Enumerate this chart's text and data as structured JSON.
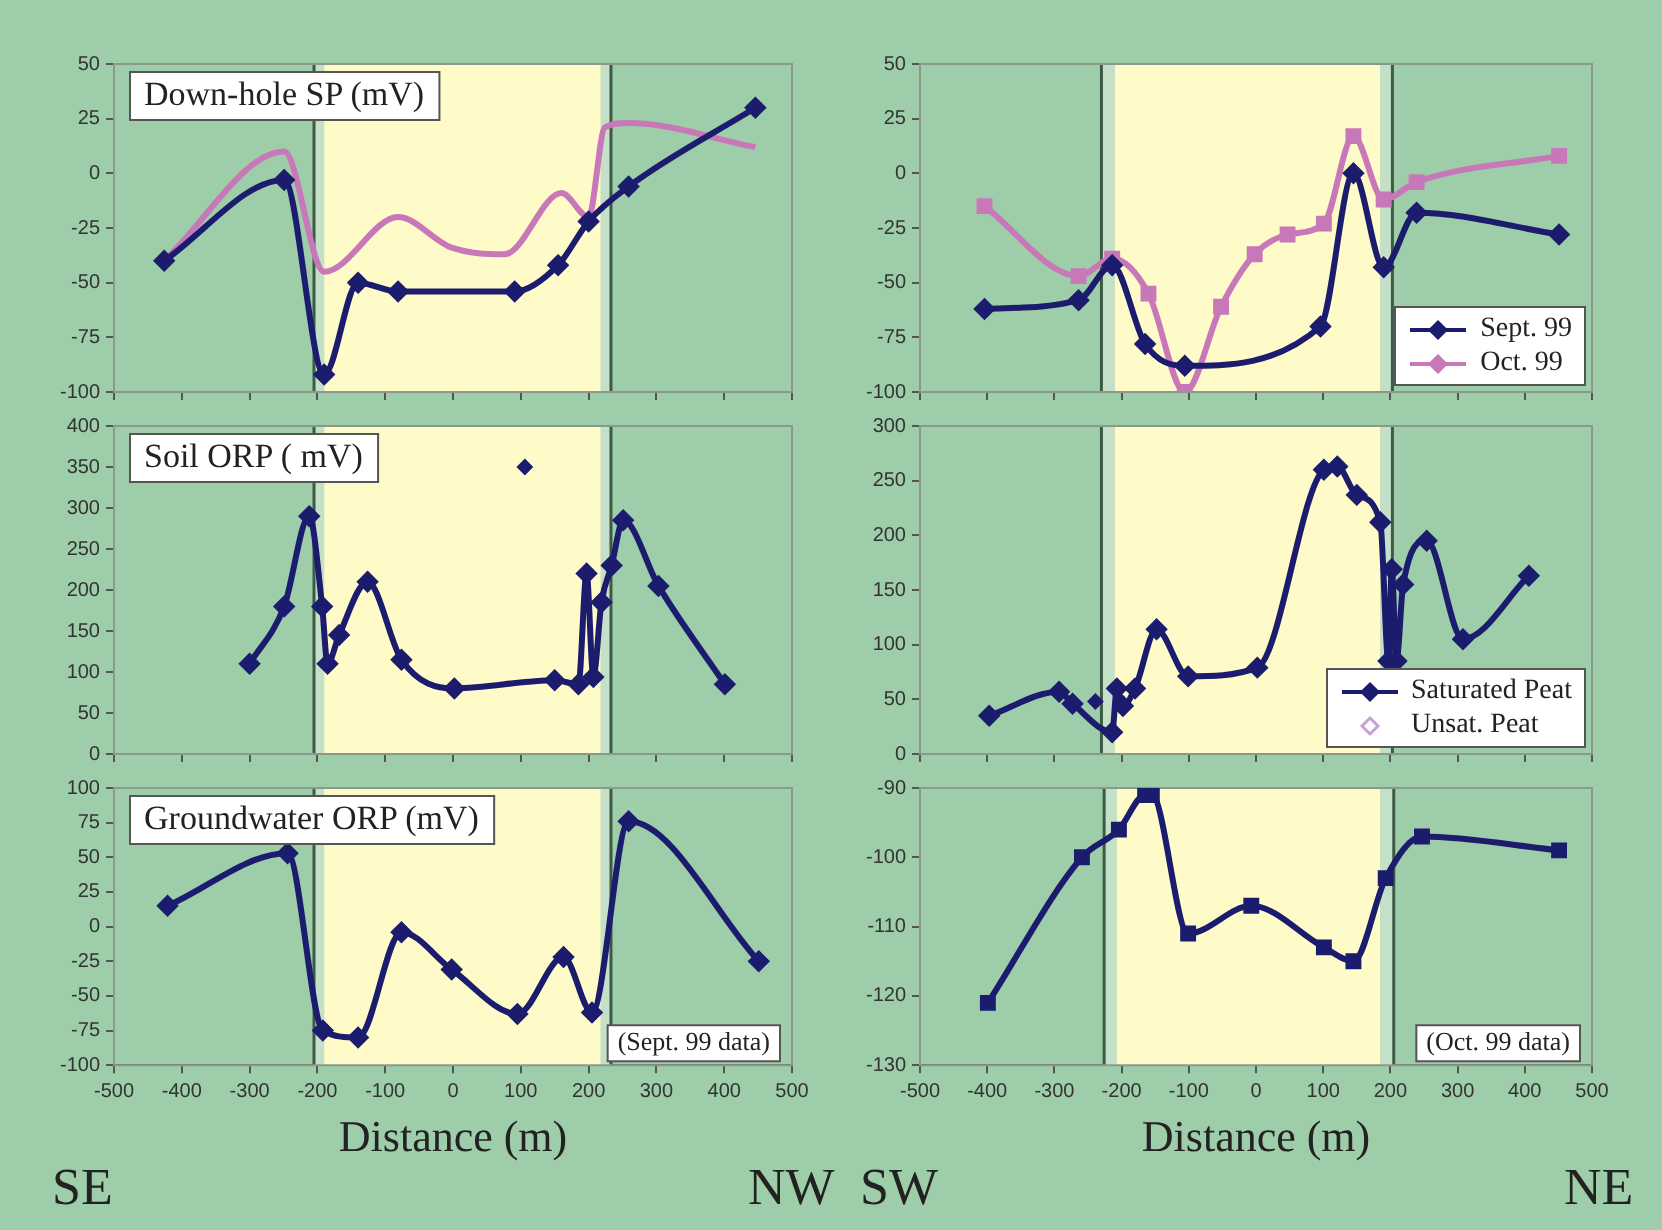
{
  "chart_data": [
    {
      "type": "line",
      "title": "Down-hole SP (mV)",
      "xlim": [
        -500,
        500
      ],
      "xticks": [
        -500,
        -400,
        -300,
        -200,
        -100,
        0,
        100,
        200,
        300,
        400,
        500
      ],
      "ylim": [
        -100,
        50
      ],
      "yticks": [
        -100,
        -75,
        -50,
        -25,
        0,
        25,
        50
      ],
      "tick_labels": "y",
      "grid": false,
      "marker": "diamond",
      "bands": [
        {
          "axis": "x",
          "from": -205,
          "to": -190,
          "color": "#c4e0c8"
        },
        {
          "axis": "x",
          "from": -190,
          "to": 218,
          "color": "#fffbc8"
        },
        {
          "axis": "x",
          "from": 218,
          "to": 233,
          "color": "#c4e0c8"
        }
      ],
      "ref_lines": [
        {
          "axis": "x",
          "value": -205,
          "color": "#3d5a45"
        },
        {
          "axis": "x",
          "value": 233,
          "color": "#3d5a45"
        }
      ],
      "series": [
        {
          "color": "#1c1c6e",
          "x": [
            -426,
            -249,
            -190,
            -140,
            -81,
            91,
            155,
            200,
            259,
            446
          ],
          "values": [
            -40,
            -3,
            -92,
            -50,
            -54,
            -54,
            -42,
            -22,
            -6,
            30
          ]
        },
        {
          "color": "#c878b8",
          "marker": "none",
          "x": [
            -426,
            -249,
            -190,
            -81,
            -2,
            76,
            160,
            200,
            224,
            259,
            446
          ],
          "values": [
            -40,
            10,
            -45,
            -20,
            -34,
            -37,
            -9,
            -20,
            21,
            23,
            12
          ]
        }
      ]
    },
    {
      "type": "line",
      "xlim": [
        -500,
        500
      ],
      "xticks": [
        -500,
        -400,
        -300,
        -200,
        -100,
        0,
        100,
        200,
        300,
        400,
        500
      ],
      "ylim": [
        -100,
        50
      ],
      "yticks": [
        -100,
        -75,
        -50,
        -25,
        0,
        25,
        50
      ],
      "tick_labels": "y",
      "grid": false,
      "marker": "diamond",
      "legend": "bottom right",
      "bands": [
        {
          "axis": "x",
          "from": -230,
          "to": -210,
          "color": "#c4e0c8"
        },
        {
          "axis": "x",
          "from": -210,
          "to": 185,
          "color": "#fffbc8"
        },
        {
          "axis": "x",
          "from": 185,
          "to": 203,
          "color": "#c4e0c8"
        }
      ],
      "ref_lines": [
        {
          "axis": "x",
          "value": -230,
          "color": "#3d5a45"
        },
        {
          "axis": "x",
          "value": 203,
          "color": "#3d5a45"
        }
      ],
      "series": [
        {
          "name": "Sept. 99",
          "color": "#1c1c6e",
          "x": [
            -404,
            -264,
            -214,
            -165,
            -106,
            96,
            145,
            190,
            239,
            451
          ],
          "values": [
            -62,
            -58,
            -42,
            -78,
            -88,
            -70,
            0,
            -43,
            -18,
            -28
          ]
        },
        {
          "name": "Oct. 99",
          "color": "#c878b8",
          "marker": "square",
          "x": [
            -404,
            -264,
            -214,
            -160,
            -106,
            -52,
            -2,
            47,
            101,
            145,
            190,
            239,
            451
          ],
          "values": [
            -15,
            -47,
            -39,
            -55,
            -100,
            -61,
            -37,
            -28,
            -23,
            17,
            -12,
            -4,
            8
          ]
        }
      ]
    },
    {
      "type": "line",
      "title": "Soil ORP ( mV)",
      "xlim": [
        -500,
        500
      ],
      "xticks": [
        -500,
        -400,
        -300,
        -200,
        -100,
        0,
        100,
        200,
        300,
        400,
        500
      ],
      "ylim": [
        0,
        400
      ],
      "yticks": [
        0,
        50,
        100,
        150,
        200,
        250,
        300,
        350,
        400
      ],
      "tick_labels": "y",
      "grid": false,
      "marker": "diamond",
      "bands": [
        {
          "axis": "x",
          "from": -205,
          "to": -190,
          "color": "#c4e0c8"
        },
        {
          "axis": "x",
          "from": -190,
          "to": 218,
          "color": "#fffbc8"
        },
        {
          "axis": "x",
          "from": 218,
          "to": 233,
          "color": "#c4e0c8"
        }
      ],
      "ref_lines": [
        {
          "axis": "x",
          "value": -205,
          "color": "#3d5a45"
        },
        {
          "axis": "x",
          "value": 233,
          "color": "#3d5a45"
        }
      ],
      "series": [
        {
          "color": "#1c1c6e",
          "x": [
            -300,
            -249,
            -212,
            -193,
            -185,
            -168,
            -126,
            -76,
            2,
            150,
            185,
            197,
            207,
            219,
            234,
            251,
            303,
            401
          ],
          "values": [
            110,
            180,
            290,
            180,
            110,
            145,
            210,
            115,
            80,
            90,
            85,
            220,
            94,
            185,
            230,
            285,
            205,
            85
          ]
        },
        {
          "type": "scatter",
          "color": "#1c1c6e",
          "x": [
            106
          ],
          "values": [
            350
          ]
        }
      ]
    },
    {
      "type": "line",
      "xlim": [
        -500,
        500
      ],
      "xticks": [
        -500,
        -400,
        -300,
        -200,
        -100,
        0,
        100,
        200,
        300,
        400,
        500
      ],
      "ylim": [
        0,
        300
      ],
      "yticks": [
        0,
        50,
        100,
        150,
        200,
        250,
        300
      ],
      "tick_labels": "y",
      "grid": false,
      "marker": "diamond",
      "legend": "bottom right",
      "bands": [
        {
          "axis": "x",
          "from": -230,
          "to": -210,
          "color": "#c4e0c8"
        },
        {
          "axis": "x",
          "from": -210,
          "to": 185,
          "color": "#fffbc8"
        },
        {
          "axis": "x",
          "from": 185,
          "to": 203,
          "color": "#c4e0c8"
        }
      ],
      "ref_lines": [
        {
          "axis": "x",
          "value": -230,
          "color": "#3d5a45"
        },
        {
          "axis": "x",
          "value": 203,
          "color": "#3d5a45"
        }
      ],
      "series": [
        {
          "name": "Saturated Peat",
          "color": "#1c1c6e",
          "x": [
            -397,
            -293,
            -273,
            -214,
            -207,
            -198,
            -180,
            -148,
            -101,
            2,
            101,
            121,
            150,
            185,
            197,
            202,
            209,
            219,
            254,
            308,
            406
          ],
          "values": [
            35,
            57,
            46,
            20,
            60,
            44,
            60,
            114,
            71,
            79,
            260,
            263,
            237,
            212,
            85,
            169,
            85,
            155,
            195,
            105,
            163
          ]
        },
        {
          "name": "Unsat. Peat",
          "type": "scatter",
          "color": "#c8a0d8"
        },
        {
          "type": "scatter",
          "color": "#1c1c6e",
          "x": [
            -239
          ],
          "values": [
            48
          ]
        }
      ]
    },
    {
      "type": "line",
      "title": "Groundwater ORP (mV)",
      "xlabel": "Distance (m)",
      "xlim": [
        -500,
        500
      ],
      "xticks": [
        -500,
        -400,
        -300,
        -200,
        -100,
        0,
        100,
        200,
        300,
        400,
        500
      ],
      "ylim": [
        -100,
        100
      ],
      "yticks": [
        -100,
        -75,
        -50,
        -25,
        0,
        25,
        50,
        75,
        100
      ],
      "grid": false,
      "marker": "diamond",
      "annotations": [
        "(Sept. 99 data)",
        "SE",
        "NW"
      ],
      "bands": [
        {
          "axis": "x",
          "from": -205,
          "to": -190,
          "color": "#c4e0c8"
        },
        {
          "axis": "x",
          "from": -190,
          "to": 218,
          "color": "#fffbc8"
        },
        {
          "axis": "x",
          "from": 218,
          "to": 233,
          "color": "#c4e0c8"
        }
      ],
      "ref_lines": [
        {
          "axis": "x",
          "value": -205,
          "color": "#3d5a45"
        },
        {
          "axis": "x",
          "value": 233,
          "color": "#3d5a45"
        }
      ],
      "series": [
        {
          "color": "#1c1c6e",
          "x": [
            -421,
            -244,
            -192,
            -140,
            -76,
            -2,
            95,
            163,
            205,
            259,
            451
          ],
          "values": [
            15,
            53,
            -75,
            -80,
            -4,
            -31,
            -63,
            -22,
            -62,
            76,
            -25
          ]
        }
      ]
    },
    {
      "type": "line",
      "xlabel": "Distance (m)",
      "xlim": [
        -500,
        500
      ],
      "xticks": [
        -500,
        -400,
        -300,
        -200,
        -100,
        0,
        100,
        200,
        300,
        400,
        500
      ],
      "ylim": [
        -130,
        -90
      ],
      "yticks": [
        -130,
        -120,
        -110,
        -100,
        -90
      ],
      "grid": false,
      "marker": "square",
      "annotations": [
        "(Oct. 99 data)",
        "SW",
        "NE"
      ],
      "bands": [
        {
          "axis": "x",
          "from": -226,
          "to": -207,
          "color": "#c4e0c8"
        },
        {
          "axis": "x",
          "from": -207,
          "to": 185,
          "color": "#fffbc8"
        },
        {
          "axis": "x",
          "from": 185,
          "to": 205,
          "color": "#c4e0c8"
        }
      ],
      "ref_lines": [
        {
          "axis": "x",
          "value": -226,
          "color": "#3d5a45"
        },
        {
          "axis": "x",
          "value": 205,
          "color": "#3d5a45"
        }
      ],
      "series": [
        {
          "color": "#1c1c6e",
          "x": [
            -399,
            -259,
            -204,
            -165,
            -155,
            -101,
            -7,
            101,
            145,
            193,
            247,
            451
          ],
          "values": [
            -121,
            -100,
            -96,
            -91,
            -91,
            -111,
            -107,
            -113,
            -115,
            -103,
            -97,
            -99
          ]
        }
      ]
    }
  ]
}
